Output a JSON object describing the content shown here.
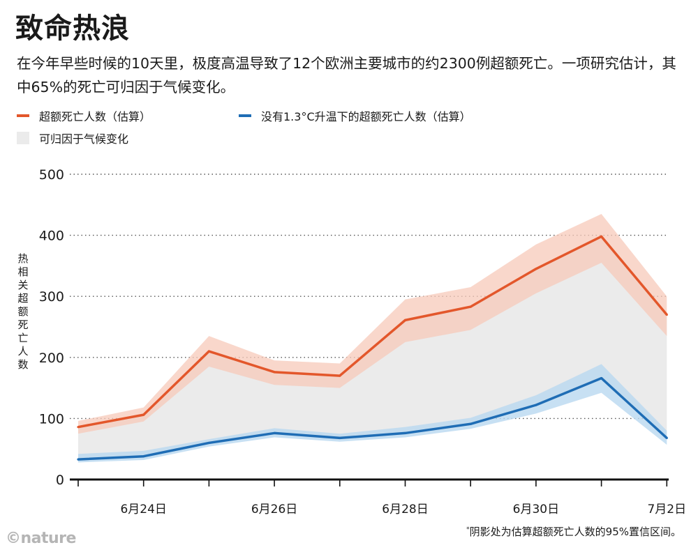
{
  "header": {
    "title": "致命热浪",
    "subtitle": "在今年早些时候的10天里，极度高温导致了12个欧洲主要城市的约2300例超额死亡。一项研究估计，其中65%的死亡可归因于气候变化。"
  },
  "legend": {
    "excess_label": "超额死亡人数（估算）",
    "no_warming_label": "没有1.3°C升温下的超额死亡人数（估算）",
    "attributable_label": "可归因于气候变化"
  },
  "colors": {
    "excess": "#e3572b",
    "excess_band": "#f7c9b9",
    "no_warming": "#1f6db5",
    "no_warming_band": "#b9d8f0",
    "attributable": "#ebebeb"
  },
  "footnote": {
    "mark": "*",
    "text": "阴影处为估算超额死亡人数的95%置信区间。"
  },
  "logo": "©nature",
  "chart_data": {
    "type": "line",
    "title": "",
    "xlabel": "",
    "ylabel": "热相关超额死亡人数",
    "x": [
      "6月23日",
      "6月24日",
      "6月25日",
      "6月26日",
      "6月27日",
      "6月28日",
      "6月29日",
      "6月30日",
      "7月1日",
      "7月2日"
    ],
    "x_tick_labels": [
      {
        "index": 1,
        "label": "6月24日"
      },
      {
        "index": 3,
        "label": "6月26日"
      },
      {
        "index": 5,
        "label": "6月28日"
      },
      {
        "index": 7,
        "label": "6月30日"
      },
      {
        "index": 9,
        "label": "7月2日"
      }
    ],
    "ylim": [
      0,
      500
    ],
    "yticks": [
      0,
      100,
      200,
      300,
      400,
      500
    ],
    "grid": "horizontal-dotted",
    "series": [
      {
        "name": "超额死亡人数（估算）",
        "values": [
          86,
          106,
          210,
          176,
          170,
          261,
          283,
          345,
          398,
          270
        ],
        "lower": [
          75,
          95,
          185,
          155,
          150,
          225,
          245,
          305,
          355,
          235
        ],
        "upper": [
          96,
          118,
          235,
          195,
          190,
          295,
          315,
          385,
          435,
          300
        ]
      },
      {
        "name": "没有1.3°C升温下的超额死亡人数（估算）",
        "values": [
          33,
          38,
          60,
          76,
          68,
          76,
          91,
          122,
          166,
          68
        ],
        "lower": [
          28,
          32,
          54,
          69,
          62,
          69,
          83,
          108,
          142,
          57
        ],
        "upper": [
          42,
          47,
          66,
          84,
          75,
          86,
          101,
          138,
          189,
          80
        ]
      }
    ]
  }
}
